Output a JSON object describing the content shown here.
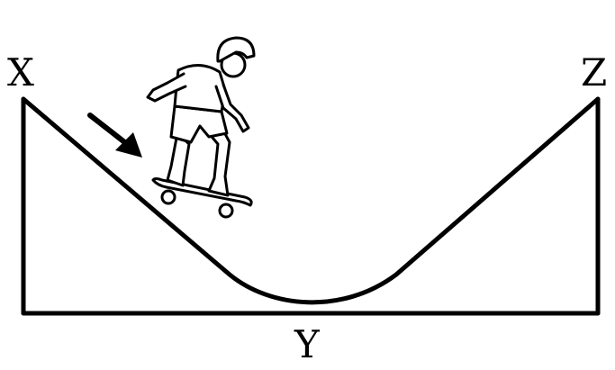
{
  "labels": {
    "start_point": "X",
    "bottom_point": "Y",
    "end_point": "Z"
  },
  "colors": {
    "stroke": "#000000",
    "background": "#ffffff"
  },
  "icons": [
    "skateboarder-figure",
    "direction-arrow-icon"
  ]
}
